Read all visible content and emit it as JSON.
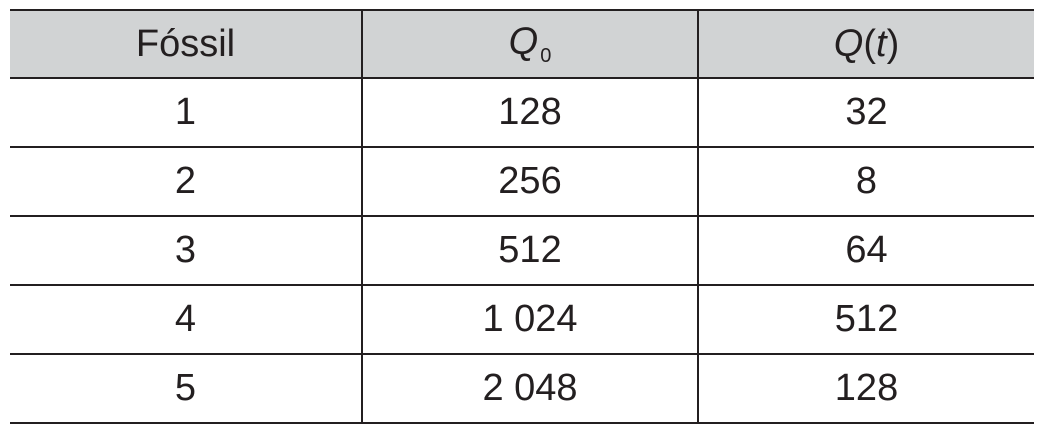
{
  "table": {
    "headers": {
      "fossil": "Fóssil",
      "q0_symbol": "Q",
      "q0_subscript": "0",
      "qt_symbol": "Q",
      "qt_open": "(",
      "qt_var": "t",
      "qt_close": ")"
    },
    "rows": [
      {
        "fossil": "1",
        "q0": "128",
        "qt": "32"
      },
      {
        "fossil": "2",
        "q0": "256",
        "qt": "8"
      },
      {
        "fossil": "3",
        "q0": "512",
        "qt": "64"
      },
      {
        "fossil": "4",
        "q0": "1 024",
        "qt": "512"
      },
      {
        "fossil": "5",
        "q0": "2 048",
        "qt": "128"
      }
    ],
    "colors": {
      "header_background": "#d1d3d4",
      "text": "#231f20",
      "rule": "#231f20"
    }
  }
}
